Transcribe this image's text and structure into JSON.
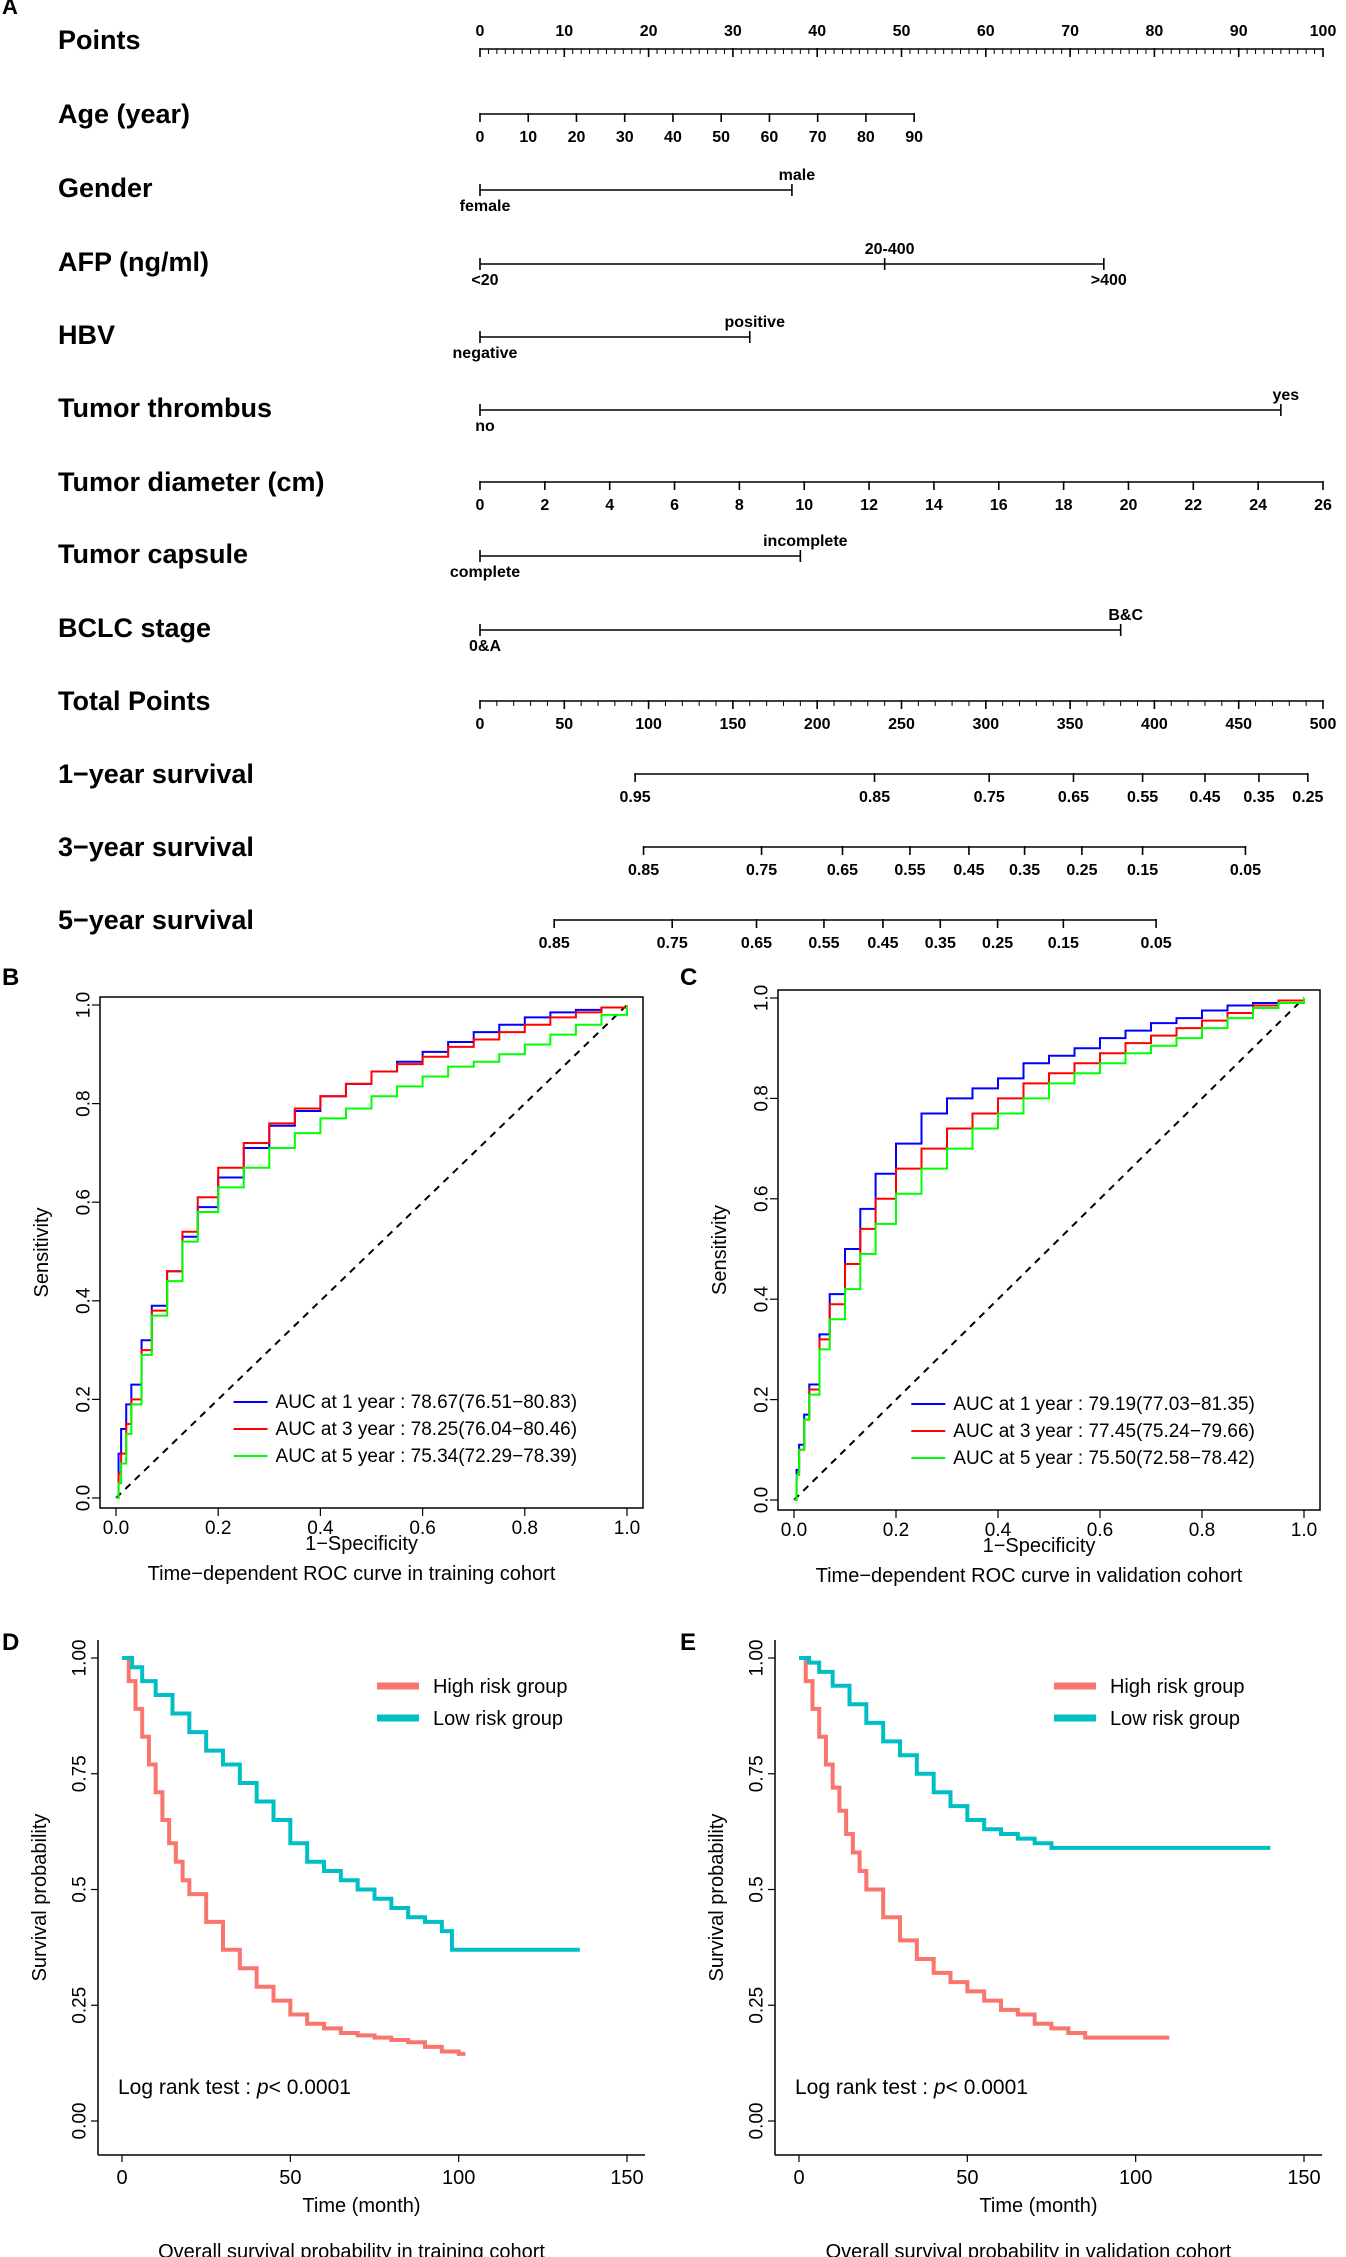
{
  "panel_labels": {
    "A": "A",
    "B": "B",
    "C": "C",
    "D": "D",
    "E": "E"
  },
  "chart_data": [
    {
      "panel": "A",
      "type": "nomogram",
      "scales": [
        {
          "name": "Points",
          "ticks": [
            0,
            10,
            20,
            30,
            40,
            50,
            60,
            70,
            80,
            90,
            100
          ],
          "range": [
            0,
            100
          ],
          "minor": 1
        },
        {
          "name": "Age (year)",
          "ticks": [
            0,
            10,
            20,
            30,
            40,
            50,
            60,
            70,
            80,
            90
          ],
          "range": [
            0,
            90
          ]
        },
        {
          "name": "Gender",
          "categories": [
            {
              "label": "female",
              "points": 0
            },
            {
              "label": "male",
              "points": 37
            }
          ]
        },
        {
          "name": "AFP (ng/ml)",
          "categories": [
            {
              "label": "<20",
              "points": 0
            },
            {
              "label": "20-400",
              "points": 48
            },
            {
              "label": ">400",
              "points": 74
            }
          ]
        },
        {
          "name": "HBV",
          "categories": [
            {
              "label": "negative",
              "points": 0
            },
            {
              "label": "positive",
              "points": 32
            }
          ]
        },
        {
          "name": "Tumor thrombus",
          "categories": [
            {
              "label": "no",
              "points": 0
            },
            {
              "label": "yes",
              "points": 95
            }
          ]
        },
        {
          "name": "Tumor diameter (cm)",
          "ticks": [
            0,
            2,
            4,
            6,
            8,
            10,
            12,
            14,
            16,
            18,
            20,
            22,
            24,
            26
          ],
          "range": [
            0,
            26
          ]
        },
        {
          "name": "Tumor capsule",
          "categories": [
            {
              "label": "complete",
              "points": 0
            },
            {
              "label": "incomplete",
              "points": 38
            }
          ]
        },
        {
          "name": "BCLC stage",
          "categories": [
            {
              "label": "0&A",
              "points": 0
            },
            {
              "label": "B&C",
              "points": 76
            }
          ]
        },
        {
          "name": "Total Points",
          "ticks": [
            0,
            50,
            100,
            150,
            200,
            250,
            300,
            350,
            400,
            450,
            500
          ],
          "range": [
            0,
            500
          ],
          "minor": 10
        },
        {
          "name": "1−year survival",
          "labels": [
            "0.95",
            "0.85",
            "0.75",
            "0.65",
            "0.55",
            "0.45",
            "0.35",
            "0.25"
          ],
          "total_points": [
            92,
            234,
            302,
            352,
            393,
            430,
            462,
            491
          ]
        },
        {
          "name": "3−year survival",
          "labels": [
            "0.85",
            "0.75",
            "0.65",
            "0.55",
            "0.45",
            "0.35",
            "0.25",
            "0.15",
            "0.05"
          ],
          "total_points": [
            97,
            167,
            215,
            255,
            290,
            323,
            357,
            393,
            454
          ]
        },
        {
          "name": "5−year survival",
          "labels": [
            "0.85",
            "0.75",
            "0.65",
            "0.55",
            "0.45",
            "0.35",
            "0.25",
            "0.15",
            "0.05"
          ],
          "total_points": [
            44,
            114,
            164,
            204,
            239,
            273,
            307,
            346,
            401
          ]
        }
      ]
    },
    {
      "panel": "B",
      "type": "line",
      "title": "Time−dependent ROC curve in training cohort",
      "xlabel": "1−Specificity",
      "ylabel": "Sensitivity",
      "xlim": [
        0,
        1
      ],
      "ylim": [
        0,
        1
      ],
      "ticks": [
        "0.0",
        "0.2",
        "0.4",
        "0.6",
        "0.8",
        "1.0"
      ],
      "series": [
        {
          "name": "AUC at 1 year : 78.67(76.51−80.83)",
          "color": "#0000ff",
          "x": [
            0,
            0.005,
            0.01,
            0.02,
            0.03,
            0.05,
            0.07,
            0.1,
            0.13,
            0.16,
            0.2,
            0.25,
            0.3,
            0.35,
            0.4,
            0.45,
            0.5,
            0.55,
            0.6,
            0.65,
            0.7,
            0.75,
            0.8,
            0.85,
            0.9,
            0.95,
            1.0
          ],
          "y": [
            0,
            0.09,
            0.14,
            0.19,
            0.23,
            0.32,
            0.39,
            0.46,
            0.53,
            0.59,
            0.65,
            0.71,
            0.755,
            0.785,
            0.815,
            0.84,
            0.865,
            0.885,
            0.905,
            0.925,
            0.945,
            0.96,
            0.975,
            0.985,
            0.99,
            0.995,
            1.0
          ]
        },
        {
          "name": "AUC at 3 year : 78.25(76.04−80.46)",
          "color": "#ff0000",
          "x": [
            0,
            0.005,
            0.01,
            0.02,
            0.03,
            0.05,
            0.07,
            0.1,
            0.13,
            0.16,
            0.2,
            0.25,
            0.3,
            0.35,
            0.4,
            0.45,
            0.5,
            0.55,
            0.6,
            0.65,
            0.7,
            0.75,
            0.8,
            0.85,
            0.9,
            0.95,
            1.0
          ],
          "y": [
            0,
            0.05,
            0.09,
            0.15,
            0.2,
            0.3,
            0.38,
            0.46,
            0.54,
            0.61,
            0.67,
            0.72,
            0.76,
            0.79,
            0.815,
            0.84,
            0.865,
            0.88,
            0.895,
            0.915,
            0.93,
            0.945,
            0.96,
            0.975,
            0.985,
            0.995,
            1.0
          ]
        },
        {
          "name": "AUC at 5 year : 75.34(72.29−78.39)",
          "color": "#00ff00",
          "x": [
            0,
            0.005,
            0.01,
            0.02,
            0.03,
            0.05,
            0.07,
            0.1,
            0.13,
            0.16,
            0.2,
            0.25,
            0.3,
            0.35,
            0.4,
            0.45,
            0.5,
            0.55,
            0.6,
            0.65,
            0.7,
            0.75,
            0.8,
            0.85,
            0.9,
            0.95,
            1.0
          ],
          "y": [
            0,
            0.03,
            0.07,
            0.13,
            0.19,
            0.29,
            0.37,
            0.44,
            0.52,
            0.58,
            0.63,
            0.67,
            0.71,
            0.74,
            0.77,
            0.79,
            0.815,
            0.835,
            0.855,
            0.875,
            0.885,
            0.9,
            0.92,
            0.94,
            0.96,
            0.98,
            1.0
          ]
        }
      ]
    },
    {
      "panel": "C",
      "type": "line",
      "title": "Time−dependent ROC curve in validation cohort",
      "xlabel": "1−Specificity",
      "ylabel": "Sensitivity",
      "xlim": [
        0,
        1
      ],
      "ylim": [
        0,
        1
      ],
      "ticks": [
        "0.0",
        "0.2",
        "0.4",
        "0.6",
        "0.8",
        "1.0"
      ],
      "series": [
        {
          "name": "AUC at 1 year : 79.19(77.03−81.35)",
          "color": "#0000ff",
          "x": [
            0,
            0.005,
            0.01,
            0.02,
            0.03,
            0.05,
            0.07,
            0.1,
            0.13,
            0.16,
            0.2,
            0.25,
            0.3,
            0.35,
            0.4,
            0.45,
            0.5,
            0.55,
            0.6,
            0.65,
            0.7,
            0.75,
            0.8,
            0.85,
            0.9,
            0.95,
            1.0
          ],
          "y": [
            0,
            0.06,
            0.11,
            0.17,
            0.23,
            0.33,
            0.41,
            0.5,
            0.58,
            0.65,
            0.71,
            0.77,
            0.8,
            0.82,
            0.84,
            0.87,
            0.885,
            0.9,
            0.92,
            0.935,
            0.95,
            0.96,
            0.975,
            0.985,
            0.99,
            0.995,
            1.0
          ]
        },
        {
          "name": "AUC at 3 year : 77.45(75.24−79.66)",
          "color": "#ff0000",
          "x": [
            0,
            0.005,
            0.01,
            0.02,
            0.03,
            0.05,
            0.07,
            0.1,
            0.13,
            0.16,
            0.2,
            0.25,
            0.3,
            0.35,
            0.4,
            0.45,
            0.5,
            0.55,
            0.6,
            0.65,
            0.7,
            0.75,
            0.8,
            0.85,
            0.9,
            0.95,
            1.0
          ],
          "y": [
            0,
            0.05,
            0.1,
            0.16,
            0.22,
            0.32,
            0.39,
            0.47,
            0.54,
            0.6,
            0.66,
            0.7,
            0.74,
            0.77,
            0.8,
            0.83,
            0.85,
            0.87,
            0.89,
            0.91,
            0.925,
            0.94,
            0.955,
            0.97,
            0.985,
            0.995,
            1.0
          ]
        },
        {
          "name": "AUC at 5 year : 75.50(72.58−78.42)",
          "color": "#00ff00",
          "x": [
            0,
            0.005,
            0.01,
            0.02,
            0.03,
            0.05,
            0.07,
            0.1,
            0.13,
            0.16,
            0.2,
            0.25,
            0.3,
            0.35,
            0.4,
            0.45,
            0.5,
            0.55,
            0.6,
            0.65,
            0.7,
            0.75,
            0.8,
            0.85,
            0.9,
            0.95,
            1.0
          ],
          "y": [
            0,
            0.05,
            0.1,
            0.16,
            0.21,
            0.3,
            0.36,
            0.42,
            0.49,
            0.55,
            0.61,
            0.66,
            0.7,
            0.74,
            0.77,
            0.8,
            0.83,
            0.85,
            0.87,
            0.89,
            0.905,
            0.92,
            0.94,
            0.96,
            0.98,
            0.99,
            1.0
          ]
        }
      ]
    },
    {
      "panel": "D",
      "type": "line",
      "title": "Overall survival probability in training cohort",
      "xlabel": "Time (month)",
      "ylabel": "Survival probability",
      "xlim": [
        0,
        150
      ],
      "xticks": [
        "0",
        "50",
        "100",
        "150"
      ],
      "yticks": [
        "0.00",
        "0.25",
        "0.5",
        "0.75",
        "1.00"
      ],
      "annotation_text": "Log rank test : ",
      "annotation_p": "p",
      "annotation_value": "< 0.0001",
      "series": [
        {
          "name": "High risk group",
          "color": "#f8766d",
          "x": [
            0,
            2,
            4,
            6,
            8,
            10,
            12,
            14,
            16,
            18,
            20,
            25,
            30,
            35,
            40,
            45,
            50,
            55,
            60,
            65,
            70,
            75,
            80,
            85,
            90,
            95,
            100,
            102
          ],
          "y": [
            1.0,
            0.95,
            0.89,
            0.83,
            0.77,
            0.71,
            0.65,
            0.6,
            0.56,
            0.52,
            0.49,
            0.43,
            0.37,
            0.33,
            0.29,
            0.26,
            0.23,
            0.21,
            0.2,
            0.19,
            0.185,
            0.18,
            0.175,
            0.17,
            0.16,
            0.15,
            0.145,
            0.145
          ]
        },
        {
          "name": "Low risk group",
          "color": "#00bfc4",
          "x": [
            0,
            3,
            6,
            10,
            15,
            20,
            25,
            30,
            35,
            40,
            45,
            50,
            55,
            60,
            65,
            70,
            75,
            80,
            85,
            90,
            95,
            98,
            100,
            110,
            120,
            130,
            136
          ],
          "y": [
            1.0,
            0.98,
            0.95,
            0.92,
            0.88,
            0.84,
            0.8,
            0.77,
            0.73,
            0.69,
            0.65,
            0.6,
            0.56,
            0.54,
            0.52,
            0.5,
            0.48,
            0.46,
            0.44,
            0.43,
            0.41,
            0.37,
            0.37,
            0.37,
            0.37,
            0.37,
            0.37
          ]
        }
      ]
    },
    {
      "panel": "E",
      "type": "line",
      "title": "Overall survival probability in validation cohort",
      "xlabel": "Time (month)",
      "ylabel": "Survival probability",
      "xlim": [
        0,
        150
      ],
      "xticks": [
        "0",
        "50",
        "100",
        "150"
      ],
      "yticks": [
        "0.00",
        "0.25",
        "0.5",
        "0.75",
        "1.00"
      ],
      "annotation_text": "Log rank test : ",
      "annotation_p": "p",
      "annotation_value": "< 0.0001",
      "series": [
        {
          "name": "High risk group",
          "color": "#f8766d",
          "x": [
            0,
            2,
            4,
            6,
            8,
            10,
            12,
            14,
            16,
            18,
            20,
            25,
            30,
            35,
            40,
            45,
            50,
            55,
            60,
            65,
            70,
            75,
            80,
            85,
            90,
            95,
            100,
            105,
            110
          ],
          "y": [
            1.0,
            0.95,
            0.89,
            0.83,
            0.77,
            0.72,
            0.67,
            0.62,
            0.58,
            0.54,
            0.5,
            0.44,
            0.39,
            0.35,
            0.32,
            0.3,
            0.28,
            0.26,
            0.24,
            0.23,
            0.21,
            0.2,
            0.19,
            0.18,
            0.18,
            0.18,
            0.18,
            0.18,
            0.18
          ]
        },
        {
          "name": "Low risk group",
          "color": "#00bfc4",
          "x": [
            0,
            3,
            6,
            10,
            15,
            20,
            25,
            30,
            35,
            40,
            45,
            50,
            55,
            60,
            65,
            70,
            75,
            80,
            90,
            100,
            110,
            120,
            130,
            140
          ],
          "y": [
            1.0,
            0.99,
            0.97,
            0.94,
            0.9,
            0.86,
            0.82,
            0.79,
            0.75,
            0.71,
            0.68,
            0.65,
            0.63,
            0.62,
            0.61,
            0.6,
            0.59,
            0.59,
            0.59,
            0.59,
            0.59,
            0.59,
            0.59,
            0.59
          ]
        }
      ]
    }
  ]
}
